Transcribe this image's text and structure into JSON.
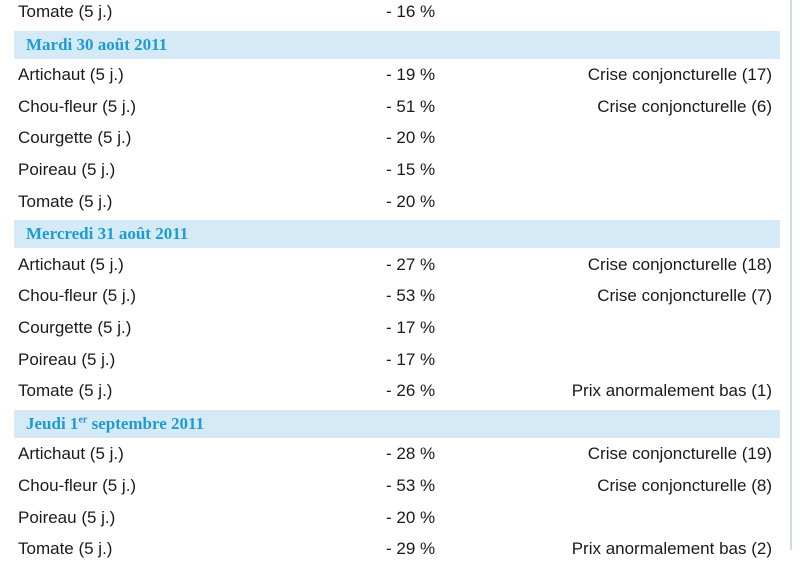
{
  "rows": [
    {
      "type": "item",
      "name": "Tomate (5 j.)",
      "pct": "- 16 %",
      "note": ""
    },
    {
      "type": "header",
      "label": "Mardi 30 août 2011"
    },
    {
      "type": "item",
      "name": "Artichaut (5 j.)",
      "pct": "- 19 %",
      "note": "Crise conjoncturelle (17)"
    },
    {
      "type": "item",
      "name": "Chou-fleur (5 j.)",
      "pct": "- 51 %",
      "note": "Crise conjoncturelle (6)"
    },
    {
      "type": "item",
      "name": "Courgette (5 j.)",
      "pct": "- 20 %",
      "note": ""
    },
    {
      "type": "item",
      "name": "Poireau (5 j.)",
      "pct": "- 15 %",
      "note": ""
    },
    {
      "type": "item",
      "name": "Tomate (5 j.)",
      "pct": "- 20 %",
      "note": ""
    },
    {
      "type": "header",
      "label": "Mercredi 31 août 2011"
    },
    {
      "type": "item",
      "name": "Artichaut (5 j.)",
      "pct": "- 27 %",
      "note": "Crise conjoncturelle (18)"
    },
    {
      "type": "item",
      "name": "Chou-fleur (5 j.)",
      "pct": "- 53 %",
      "note": "Crise conjoncturelle (7)"
    },
    {
      "type": "item",
      "name": "Courgette (5 j.)",
      "pct": "- 17 %",
      "note": ""
    },
    {
      "type": "item",
      "name": "Poireau (5 j.)",
      "pct": "- 17 %",
      "note": ""
    },
    {
      "type": "item",
      "name": "Tomate (5 j.)",
      "pct": "- 26 %",
      "note": "Prix anormalement bas (1)"
    },
    {
      "type": "header",
      "label": "Jeudi 1",
      "label_sup": "er",
      "label_rest": " septembre 2011"
    },
    {
      "type": "item",
      "name": "Artichaut (5 j.)",
      "pct": "- 28 %",
      "note": "Crise conjoncturelle (19)"
    },
    {
      "type": "item",
      "name": "Chou-fleur (5 j.)",
      "pct": "- 53 %",
      "note": "Crise conjoncturelle (8)"
    },
    {
      "type": "item",
      "name": "Poireau (5 j.)",
      "pct": "- 20 %",
      "note": ""
    },
    {
      "type": "item",
      "name": "Tomate (5 j.)",
      "pct": "- 29 %",
      "note": "Prix anormalement bas (2)"
    }
  ]
}
